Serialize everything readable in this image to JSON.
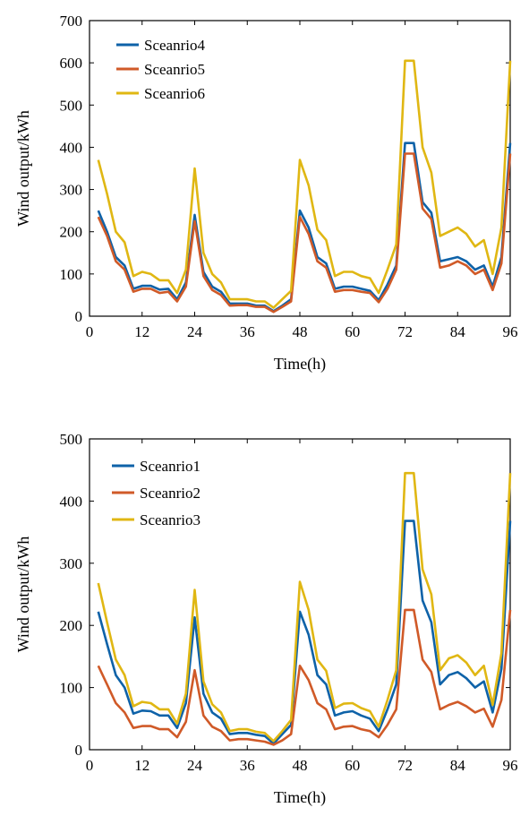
{
  "chart_data": [
    {
      "type": "line",
      "xlabel": "Time(h)",
      "ylabel": "Wind output/kWh",
      "xlim": [
        0,
        96
      ],
      "ylim": [
        0,
        700
      ],
      "xticks": [
        0,
        12,
        24,
        36,
        48,
        60,
        72,
        84,
        96
      ],
      "yticks": [
        0,
        100,
        200,
        300,
        400,
        500,
        600,
        700
      ],
      "legend_position": "top-left",
      "x": [
        2,
        4,
        6,
        8,
        10,
        12,
        14,
        16,
        18,
        20,
        22,
        24,
        26,
        28,
        30,
        32,
        34,
        36,
        38,
        40,
        42,
        44,
        46,
        48,
        50,
        52,
        54,
        56,
        58,
        60,
        62,
        64,
        66,
        68,
        70,
        72,
        74,
        76,
        78,
        80,
        82,
        84,
        86,
        88,
        90,
        92,
        94,
        96
      ],
      "series": [
        {
          "name": "Sceanrio4",
          "color": "#0e62a8",
          "values": [
            250,
            200,
            140,
            120,
            65,
            72,
            72,
            63,
            65,
            40,
            80,
            240,
            105,
            70,
            58,
            30,
            30,
            30,
            25,
            25,
            12,
            25,
            40,
            250,
            210,
            140,
            125,
            65,
            70,
            70,
            65,
            60,
            38,
            75,
            120,
            410,
            410,
            270,
            245,
            130,
            135,
            140,
            130,
            110,
            120,
            70,
            140,
            410
          ]
        },
        {
          "name": "Sceanrio5",
          "color": "#d05a28",
          "values": [
            235,
            190,
            130,
            110,
            58,
            65,
            65,
            55,
            58,
            35,
            70,
            225,
            95,
            62,
            50,
            25,
            26,
            26,
            22,
            22,
            10,
            22,
            35,
            235,
            195,
            130,
            115,
            58,
            62,
            62,
            58,
            55,
            33,
            65,
            110,
            385,
            385,
            255,
            230,
            115,
            120,
            130,
            120,
            100,
            110,
            62,
            125,
            385
          ]
        },
        {
          "name": "Sceanrio6",
          "color": "#e0b713",
          "values": [
            370,
            290,
            200,
            175,
            95,
            105,
            100,
            85,
            85,
            55,
            110,
            350,
            150,
            100,
            80,
            40,
            40,
            40,
            35,
            35,
            20,
            40,
            60,
            370,
            310,
            205,
            180,
            95,
            105,
            105,
            95,
            90,
            55,
            110,
            170,
            605,
            605,
            400,
            340,
            190,
            200,
            210,
            195,
            165,
            180,
            100,
            210,
            605
          ]
        }
      ]
    },
    {
      "type": "line",
      "xlabel": "Time(h)",
      "ylabel": "Wind output/kWh",
      "xlim": [
        0,
        96
      ],
      "ylim": [
        0,
        500
      ],
      "xticks": [
        0,
        12,
        24,
        36,
        48,
        60,
        72,
        84,
        96
      ],
      "yticks": [
        0,
        100,
        200,
        300,
        400,
        500
      ],
      "legend_position": "top-left",
      "x": [
        2,
        4,
        6,
        8,
        10,
        12,
        14,
        16,
        18,
        20,
        22,
        24,
        26,
        28,
        30,
        32,
        34,
        36,
        38,
        40,
        42,
        44,
        46,
        48,
        50,
        52,
        54,
        56,
        58,
        60,
        62,
        64,
        66,
        68,
        70,
        72,
        74,
        76,
        78,
        80,
        82,
        84,
        86,
        88,
        90,
        92,
        94,
        96
      ],
      "series": [
        {
          "name": "Sceanrio1",
          "color": "#0e62a8",
          "values": [
            222,
            170,
            120,
            100,
            58,
            63,
            62,
            55,
            55,
            35,
            75,
            213,
            90,
            60,
            50,
            25,
            27,
            27,
            24,
            22,
            10,
            25,
            40,
            222,
            185,
            120,
            105,
            55,
            60,
            62,
            55,
            50,
            30,
            65,
            105,
            368,
            368,
            240,
            205,
            105,
            120,
            125,
            115,
            100,
            110,
            60,
            130,
            368
          ]
        },
        {
          "name": "Sceanrio2",
          "color": "#d05a28",
          "values": [
            135,
            105,
            75,
            60,
            35,
            38,
            38,
            33,
            33,
            20,
            45,
            128,
            55,
            37,
            30,
            15,
            17,
            17,
            15,
            13,
            8,
            15,
            25,
            135,
            112,
            75,
            65,
            33,
            37,
            38,
            33,
            30,
            20,
            40,
            65,
            225,
            225,
            145,
            125,
            65,
            72,
            77,
            70,
            60,
            66,
            37,
            80,
            225
          ]
        },
        {
          "name": "Sceanrio3",
          "color": "#e0b713",
          "values": [
            268,
            205,
            145,
            120,
            70,
            77,
            75,
            65,
            65,
            42,
            90,
            257,
            110,
            73,
            60,
            30,
            33,
            33,
            29,
            27,
            14,
            30,
            48,
            270,
            225,
            145,
            127,
            67,
            74,
            75,
            67,
            62,
            37,
            80,
            128,
            445,
            445,
            290,
            250,
            128,
            147,
            152,
            140,
            120,
            135,
            72,
            155,
            445
          ]
        }
      ]
    }
  ]
}
